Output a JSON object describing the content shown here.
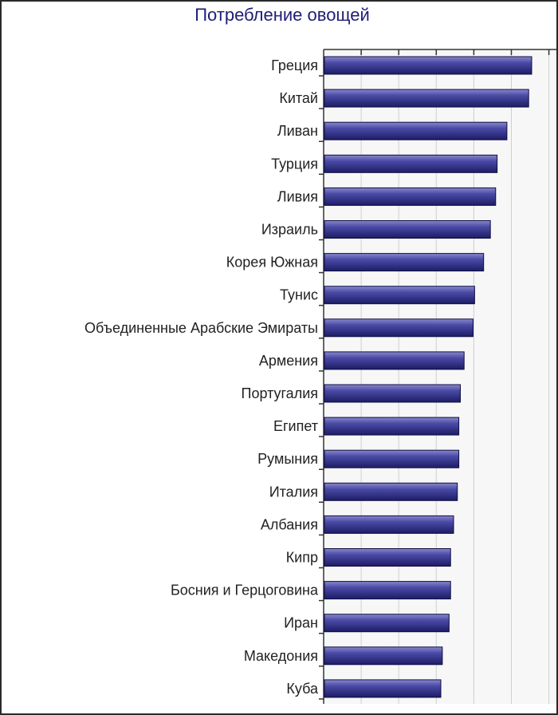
{
  "chart_data": {
    "type": "bar",
    "orientation": "horizontal",
    "title": "Потребление овощей",
    "xlabel": "",
    "ylabel": "",
    "xlim": [
      0,
      310
    ],
    "grid": true,
    "legend": "none",
    "bar_color": "#33338f",
    "categories": [
      "Греция",
      "Китай",
      "Ливан",
      "Турция",
      "Ливия",
      "Израиль",
      "Корея Южная",
      "Тунис",
      "Объединенные Арабские Эмираты",
      "Армения",
      "Португалия",
      "Египет",
      "Румыния",
      "Италия",
      "Албания",
      "Кипр",
      "Босния и Герцоговина",
      "Иран",
      "Македония",
      "Куба"
    ],
    "values": [
      276,
      272,
      243,
      230,
      228,
      221,
      212,
      200,
      198,
      186,
      181,
      179,
      179,
      177,
      172,
      168,
      168,
      166,
      157,
      155
    ]
  }
}
